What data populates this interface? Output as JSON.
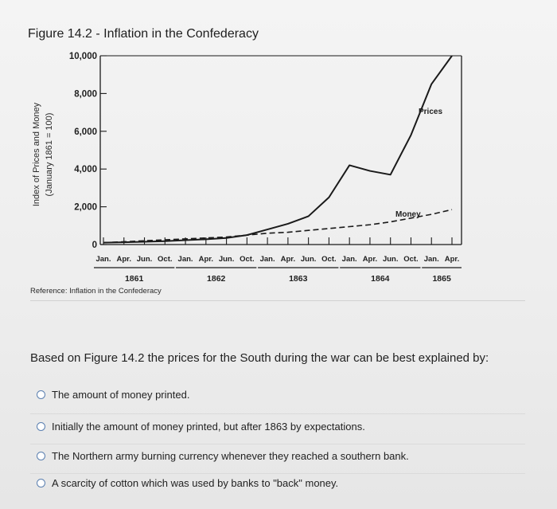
{
  "figure": {
    "title": "Figure 14.2 - Inflation in the Confederacy",
    "reference": "Reference: Inflation in the Confederacy"
  },
  "chart_data": {
    "type": "line",
    "title": "Figure 14.2 - Inflation in the Confederacy",
    "ylabel_line1": "Index of Prices and Money",
    "ylabel_line2": "(January 1861 = 100)",
    "ylim": [
      0,
      10000
    ],
    "yticks": [
      "0",
      "2,000",
      "4,000",
      "6,000",
      "8,000",
      "10,000"
    ],
    "ytick_values": [
      0,
      2000,
      4000,
      6000,
      8000,
      10000
    ],
    "x_tick_labels": [
      "Jan.",
      "Apr.",
      "Jun.",
      "Oct.",
      "Jan.",
      "Apr.",
      "Jun.",
      "Oct.",
      "Jan.",
      "Apr.",
      "Jun.",
      "Oct.",
      "Jan.",
      "Apr.",
      "Jun.",
      "Oct.",
      "Jan.",
      "Apr."
    ],
    "years": [
      "1861",
      "1862",
      "1863",
      "1864",
      "1865"
    ],
    "grid": false,
    "series": [
      {
        "name": "Prices",
        "style": "solid",
        "color": "#1a1a1a",
        "x": [
          0,
          1,
          2,
          3,
          4,
          5,
          6,
          7,
          8,
          9,
          10,
          11,
          12,
          13,
          14,
          15,
          16,
          17
        ],
        "values": [
          100,
          120,
          150,
          180,
          230,
          280,
          350,
          500,
          800,
          1100,
          1500,
          2500,
          4200,
          3900,
          3700,
          5800,
          8500,
          10000
        ]
      },
      {
        "name": "Money",
        "style": "dashed",
        "color": "#1a1a1a",
        "x": [
          0,
          1,
          2,
          3,
          4,
          5,
          6,
          7,
          8,
          9,
          10,
          11,
          12,
          13,
          14,
          15,
          16,
          17
        ],
        "values": [
          100,
          150,
          200,
          250,
          300,
          350,
          400,
          500,
          600,
          650,
          750,
          850,
          950,
          1050,
          1200,
          1400,
          1600,
          1850
        ]
      }
    ]
  },
  "question": {
    "text": "Based on Figure 14.2 the prices for the South during the war can be best explained by:",
    "options": [
      "The amount of money printed.",
      "Initially the amount of money printed, but after 1863 by expectations.",
      "The Northern army burning currency whenever they reached a southern bank.",
      "A scarcity of cotton which was used by banks to \"back\" money."
    ]
  }
}
